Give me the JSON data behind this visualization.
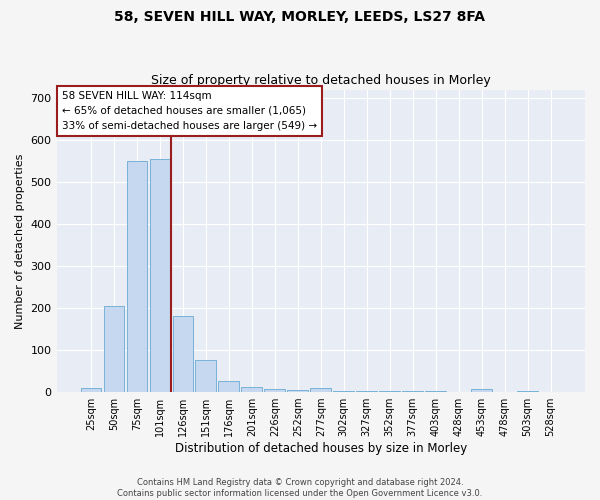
{
  "title1": "58, SEVEN HILL WAY, MORLEY, LEEDS, LS27 8FA",
  "title2": "Size of property relative to detached houses in Morley",
  "xlabel": "Distribution of detached houses by size in Morley",
  "ylabel": "Number of detached properties",
  "categories": [
    "25sqm",
    "50sqm",
    "75sqm",
    "101sqm",
    "126sqm",
    "151sqm",
    "176sqm",
    "201sqm",
    "226sqm",
    "252sqm",
    "277sqm",
    "302sqm",
    "327sqm",
    "352sqm",
    "377sqm",
    "403sqm",
    "428sqm",
    "453sqm",
    "478sqm",
    "503sqm",
    "528sqm"
  ],
  "values": [
    10,
    205,
    550,
    555,
    180,
    77,
    27,
    12,
    7,
    5,
    10,
    2,
    2,
    2,
    2,
    2,
    0,
    7,
    0,
    2,
    0
  ],
  "bar_color": "#c5d8ef",
  "bar_edge_color": "#6aaad4",
  "vline_x": 3.5,
  "vline_color": "#9b1c1c",
  "annotation_line1": "58 SEVEN HILL WAY: 114sqm",
  "annotation_line2": "← 65% of detached houses are smaller (1,065)",
  "annotation_line3": "33% of semi-detached houses are larger (549) →",
  "annotation_box_color": "#9b1c1c",
  "ylim": [
    0,
    720
  ],
  "yticks": [
    0,
    100,
    200,
    300,
    400,
    500,
    600,
    700
  ],
  "bg_color": "#e8ecf4",
  "grid_color": "#ffffff",
  "footer": "Contains HM Land Registry data © Crown copyright and database right 2024.\nContains public sector information licensed under the Open Government Licence v3.0."
}
